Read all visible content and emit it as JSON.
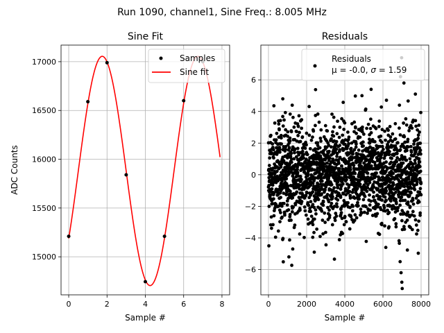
{
  "figure_title": "Run 1090, channel1, Sine Freq.: 8.005 MHz",
  "colors": {
    "fit_line": "#ff0000",
    "points": "#000000",
    "grid": "#b0b0b0"
  },
  "chart_data": [
    {
      "type": "line",
      "title": "Sine Fit",
      "xlabel": "Sample #",
      "ylabel": "ADC Counts",
      "xlim": [
        -0.4,
        8.4
      ],
      "ylim": [
        14610,
        17170
      ],
      "xticks": [
        0,
        2,
        4,
        6,
        8
      ],
      "yticks": [
        15000,
        15500,
        16000,
        16500,
        17000
      ],
      "grid": true,
      "legend_position": "top-right",
      "series": [
        {
          "name": "Samples",
          "style": "markers",
          "x": [
            0,
            1,
            2,
            3,
            4,
            5,
            6,
            7
          ],
          "y": [
            15210,
            16590,
            16990,
            15840,
            14745,
            15210,
            16600,
            17000
          ]
        },
        {
          "name": "Sine fit",
          "style": "line",
          "model": {
            "offset": 15880,
            "amplitude": 1175,
            "period": 4.997,
            "peak_x": 1.75,
            "x_range": [
              0,
              7.9
            ]
          }
        }
      ]
    },
    {
      "type": "scatter",
      "title": "Residuals",
      "xlabel": "Sample #",
      "ylim": [
        -7.6,
        8.2
      ],
      "xlim": [
        -400,
        8400
      ],
      "xticks": [
        0,
        2000,
        4000,
        6000,
        8000
      ],
      "yticks": [
        -6,
        -4,
        -2,
        0,
        2,
        4,
        6
      ],
      "grid": true,
      "legend_position": "top-right",
      "series": [
        {
          "name": "Residuals",
          "stats_text_1": "μ = -0.0, ",
          "stats_text_2": "σ",
          "stats_text_3": " = 1.59",
          "n_points": 8000,
          "mean": 0.0,
          "std": 1.59,
          "x_range": [
            0,
            7999
          ],
          "outliers": [
            {
              "x": 6980,
              "y": 7.4
            },
            {
              "x": 7010,
              "y": -7.2
            },
            {
              "x": 6990,
              "y": -6.8
            },
            {
              "x": 6950,
              "y": -6.2
            },
            {
              "x": 6900,
              "y": -5.5
            },
            {
              "x": 6920,
              "y": 6.2
            },
            {
              "x": 1070,
              "y": -5.2
            },
            {
              "x": 5380,
              "y": 5.4
            },
            {
              "x": 4900,
              "y": 5.0
            },
            {
              "x": 6150,
              "y": -4.6
            },
            {
              "x": 20,
              "y": -4.5
            },
            {
              "x": 7100,
              "y": 5.8
            },
            {
              "x": 7700,
              "y": 5.1
            },
            {
              "x": 750,
              "y": 4.8
            },
            {
              "x": 2400,
              "y": -4.9
            }
          ]
        }
      ]
    }
  ]
}
